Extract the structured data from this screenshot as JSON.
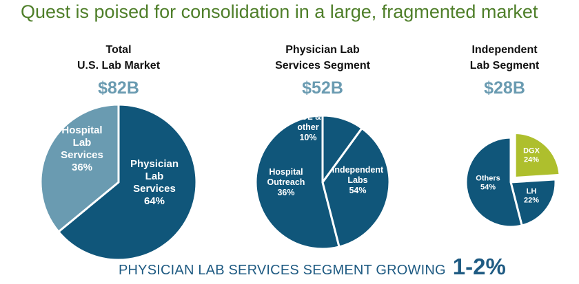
{
  "slide": {
    "title": "Quest is poised for consolidation in a large, fragmented market",
    "footer_text": "PHYSICIAN LAB SERVICES SEGMENT GROWING",
    "footer_rate": "1-2%"
  },
  "colors": {
    "title_green": "#4f7f2a",
    "dark_navy": "#10567a",
    "light_steel": "#6a9bb1",
    "lime": "#aebf2d",
    "value_blue": "#6a9bb1",
    "footer_blue": "#1e5a82"
  },
  "chart_data": [
    {
      "type": "pie",
      "title": "Total U.S. Lab Market",
      "title_lines": [
        "Total",
        "U.S. Lab Market"
      ],
      "total": "$82B",
      "slices": [
        {
          "label_lines": [
            "Physician",
            "Lab",
            "Services"
          ],
          "pct_label": "64%",
          "value": 64,
          "color": "#10567a"
        },
        {
          "label_lines": [
            "Hospital",
            "Lab",
            "Services"
          ],
          "pct_label": "36%",
          "value": 36,
          "color": "#6a9bb1"
        }
      ]
    },
    {
      "type": "pie",
      "title": "Physician Lab Services Segment",
      "title_lines": [
        "Physician Lab",
        "Services Segment"
      ],
      "total": "$52B",
      "slices": [
        {
          "label_lines": [
            "Independent",
            "Labs"
          ],
          "pct_label": "54%",
          "value": 54,
          "color": "#10567a"
        },
        {
          "label_lines": [
            "Hospital",
            "Outreach"
          ],
          "pct_label": "36%",
          "value": 36,
          "color": "#10567a"
        },
        {
          "label_lines": [
            "POL &",
            "other"
          ],
          "pct_label": "10%",
          "value": 10,
          "color": "#10567a"
        }
      ]
    },
    {
      "type": "pie",
      "title": "Independent Lab Segment",
      "title_lines": [
        "Independent",
        "Lab Segment"
      ],
      "total": "$28B",
      "slices": [
        {
          "label_lines": [
            "DGX"
          ],
          "pct_label": "24%",
          "value": 24,
          "color": "#aebf2d",
          "exploded": true
        },
        {
          "label_lines": [
            "LH"
          ],
          "pct_label": "22%",
          "value": 22,
          "color": "#10567a"
        },
        {
          "label_lines": [
            "Others"
          ],
          "pct_label": "54%",
          "value": 54,
          "color": "#10567a"
        }
      ]
    }
  ]
}
